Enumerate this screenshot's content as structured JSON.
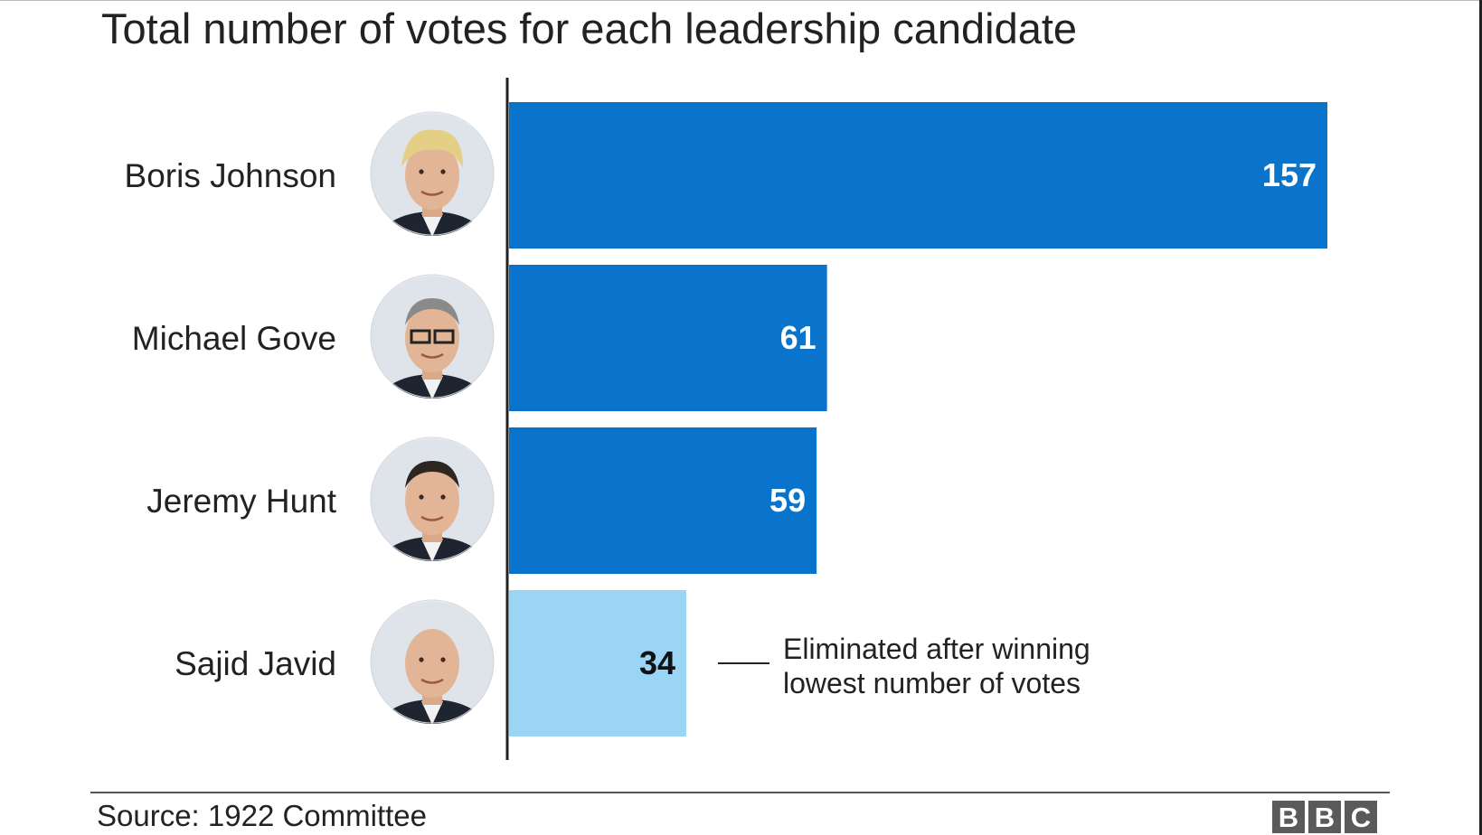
{
  "title": "Total number of votes for each leadership candidate",
  "source": "Source: 1922 Committee",
  "logo": {
    "letters": [
      "B",
      "B",
      "C"
    ]
  },
  "colors": {
    "bar": "#0a74cc",
    "eliminated": "#9ad5f5",
    "axis": "#222222",
    "label_on_bar": "#ffffff",
    "label_on_light": "#111111"
  },
  "chart_data": {
    "type": "bar",
    "orientation": "horizontal",
    "title": "Total number of votes for each leadership candidate",
    "categories": [
      "Boris Johnson",
      "Michael Gove",
      "Jeremy Hunt",
      "Sajid Javid"
    ],
    "values": [
      157,
      61,
      59,
      34
    ],
    "eliminated": [
      false,
      false,
      false,
      true
    ],
    "annotation": {
      "category": "Sajid Javid",
      "text": [
        "Eliminated after winning",
        "lowest number of votes"
      ]
    },
    "xlim": [
      0,
      163
    ],
    "grid": false,
    "data_labels": true
  }
}
